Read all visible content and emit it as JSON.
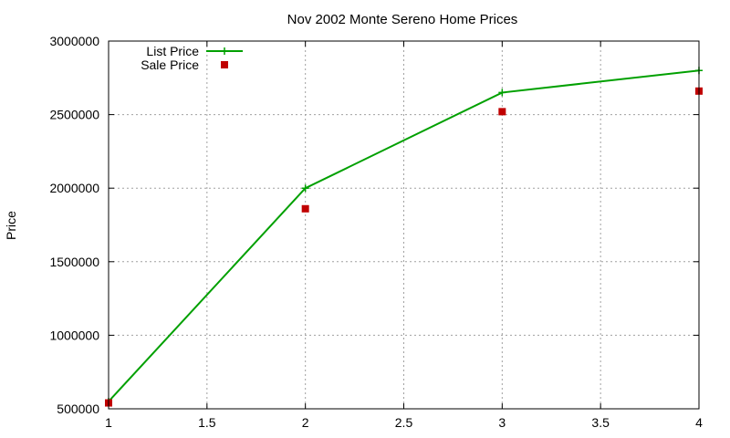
{
  "chart_data": {
    "type": "line",
    "title": "Nov 2002 Monte Sereno Home Prices",
    "xlabel": "",
    "ylabel": "Price",
    "xlim": [
      1,
      4
    ],
    "ylim": [
      500000,
      3000000
    ],
    "x_ticks": [
      "1",
      "1.5",
      "2",
      "2.5",
      "3",
      "3.5",
      "4"
    ],
    "y_ticks": [
      "500000",
      "1000000",
      "1500000",
      "2000000",
      "2500000",
      "3000000"
    ],
    "grid": true,
    "legend_position": "top-left",
    "series": [
      {
        "name": "List Price",
        "style": "line-with-plus-markers",
        "color": "#00a000",
        "points": [
          [
            1,
            550000
          ],
          [
            2,
            2000000
          ],
          [
            3,
            2650000
          ],
          [
            4,
            2800000
          ]
        ]
      },
      {
        "name": "Sale Price",
        "style": "square-markers",
        "color": "#c00000",
        "points": [
          [
            1,
            540000
          ],
          [
            2,
            1860000
          ],
          [
            3,
            2520000
          ],
          [
            4,
            2660000
          ]
        ]
      }
    ]
  }
}
